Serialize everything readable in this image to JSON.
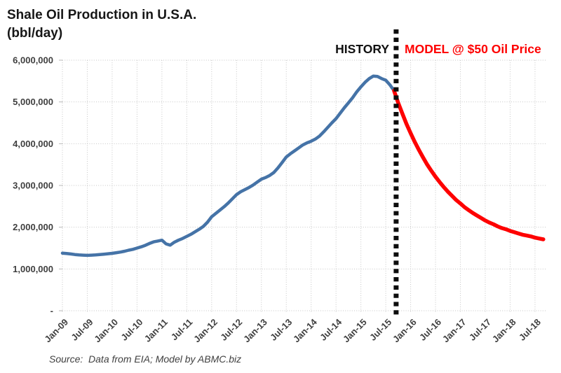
{
  "header": {
    "title_line1": "Shale Oil Production in U.S.A.",
    "title_line2": "(bbl/day)"
  },
  "annotations": {
    "history_label": "HISTORY",
    "model_label": "MODEL @ $50 Oil Price"
  },
  "source_note": "Source:  Data from EIA; Model by ABMC.biz",
  "colors": {
    "history_line": "#4573A7",
    "model_line": "#FE0000",
    "divider": "#0D0D0D",
    "gridline": "#C6C6C6",
    "axis_text": "#3F3F3F"
  },
  "chart_data": {
    "type": "line",
    "title": "Shale Oil Production in U.S.A. (bbl/day)",
    "ylabel": "bbl/day",
    "ylim": [
      0,
      6000000
    ],
    "grid": true,
    "x_start_month": "Jan-2009",
    "x_tick_interval_months": 6,
    "x_tick_labels": [
      "Jan-09",
      "Jul-09",
      "Jan-10",
      "Jul-10",
      "Jan-11",
      "Jul-11",
      "Jan-12",
      "Jul-12",
      "Jan-13",
      "Jul-13",
      "Jan-14",
      "Jul-14",
      "Jan-15",
      "Jul-15",
      "Jan-16",
      "Jul-16",
      "Jan-17",
      "Jul-17",
      "Jan-18",
      "Jul-18"
    ],
    "y_ticks": [
      {
        "value": 0,
        "label": "-"
      },
      {
        "value": 1000000,
        "label": "1,000,000"
      },
      {
        "value": 2000000,
        "label": "2,000,000"
      },
      {
        "value": 3000000,
        "label": "3,000,000"
      },
      {
        "value": 4000000,
        "label": "4,000,000"
      },
      {
        "value": 5000000,
        "label": "5,000,000"
      },
      {
        "value": 6000000,
        "label": "6,000,000"
      }
    ],
    "divider": {
      "month_index": 80.5,
      "label_left": "HISTORY",
      "label_right": "MODEL @ $50 Oil Price"
    },
    "series": [
      {
        "name": "HISTORY",
        "color": "#4573A7",
        "start_month_index": 0,
        "monthly_values_bbl_per_day": [
          1380000,
          1370000,
          1360000,
          1345000,
          1335000,
          1330000,
          1325000,
          1330000,
          1335000,
          1345000,
          1355000,
          1365000,
          1375000,
          1390000,
          1405000,
          1425000,
          1450000,
          1470000,
          1500000,
          1530000,
          1565000,
          1610000,
          1650000,
          1670000,
          1690000,
          1600000,
          1570000,
          1640000,
          1690000,
          1730000,
          1780000,
          1830000,
          1890000,
          1950000,
          2020000,
          2120000,
          2250000,
          2330000,
          2410000,
          2490000,
          2580000,
          2680000,
          2780000,
          2850000,
          2900000,
          2950000,
          3010000,
          3080000,
          3150000,
          3190000,
          3240000,
          3310000,
          3420000,
          3550000,
          3680000,
          3760000,
          3830000,
          3900000,
          3970000,
          4020000,
          4060000,
          4110000,
          4180000,
          4280000,
          4390000,
          4500000,
          4600000,
          4730000,
          4860000,
          4980000,
          5100000,
          5240000,
          5360000,
          5470000,
          5560000,
          5620000,
          5610000,
          5560000,
          5520000,
          5410000,
          5270000
        ]
      },
      {
        "name": "MODEL @ $50 Oil Price",
        "color": "#FE0000",
        "start_month_index": 80,
        "monthly_values_bbl_per_day": [
          5270000,
          4980000,
          4720000,
          4470000,
          4250000,
          4040000,
          3850000,
          3670000,
          3500000,
          3350000,
          3210000,
          3080000,
          2960000,
          2850000,
          2750000,
          2650000,
          2570000,
          2480000,
          2410000,
          2340000,
          2280000,
          2220000,
          2160000,
          2110000,
          2070000,
          2020000,
          1980000,
          1950000,
          1910000,
          1880000,
          1850000,
          1820000,
          1800000,
          1780000,
          1750000,
          1730000,
          1710000
        ]
      }
    ]
  }
}
